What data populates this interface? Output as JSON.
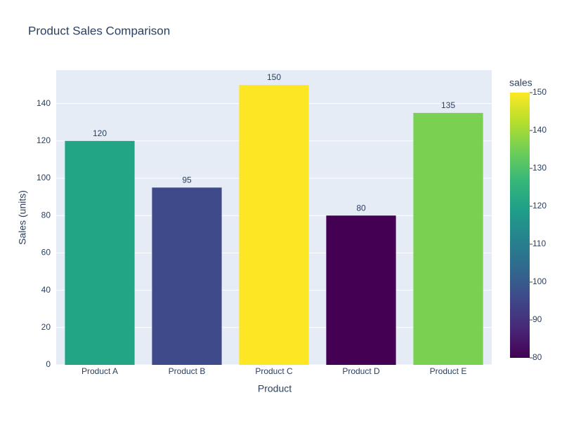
{
  "chart_data": {
    "type": "bar",
    "title": "Product Sales Comparison",
    "x_label": "Product",
    "y_label": "Sales (units)",
    "categories": [
      "Product A",
      "Product B",
      "Product C",
      "Product D",
      "Product E"
    ],
    "values": [
      120,
      95,
      150,
      80,
      135
    ],
    "colors": [
      "#21a585",
      "#3e4a89",
      "#fde725",
      "#440154",
      "#7ad151"
    ],
    "ylim": [
      0,
      157.9
    ],
    "yticks": [
      0,
      20,
      40,
      60,
      80,
      100,
      120,
      140
    ],
    "grid": true,
    "colorbar": {
      "title": "sales",
      "lim": [
        80,
        150
      ],
      "ticks": [
        80,
        90,
        100,
        110,
        120,
        130,
        140,
        150
      ],
      "colorscale": [
        "#440154",
        "#482878",
        "#3e4989",
        "#31688e",
        "#26828e",
        "#1f9e89",
        "#35b779",
        "#6ece58",
        "#b5de2b",
        "#fde725"
      ]
    }
  }
}
